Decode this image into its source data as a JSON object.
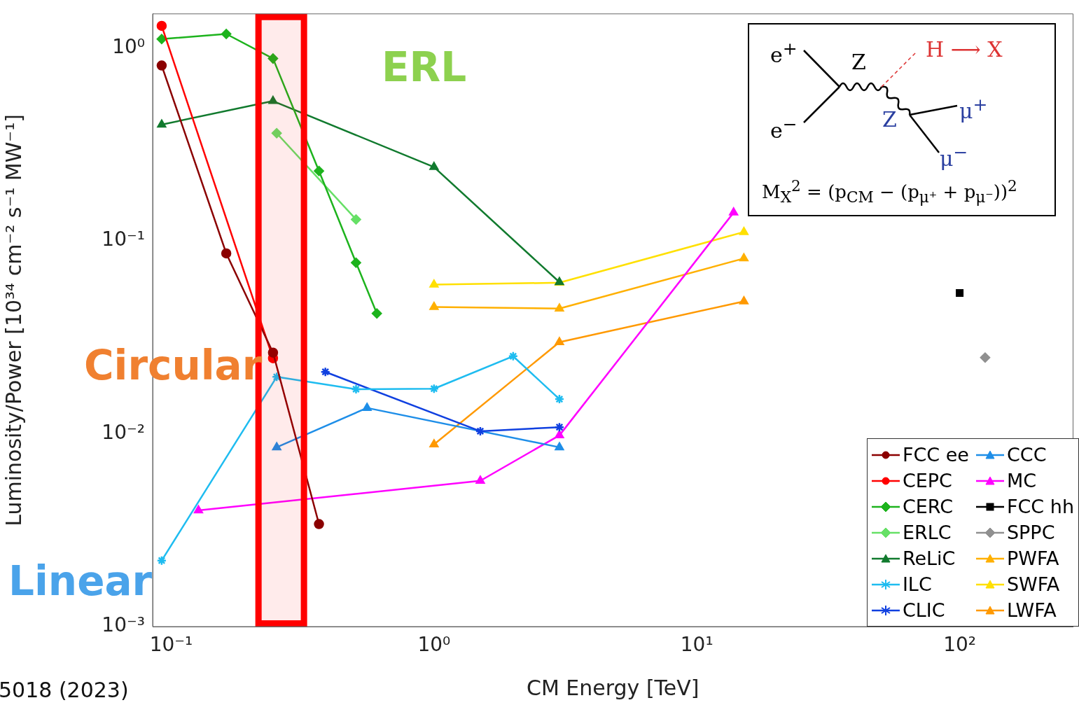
{
  "chart_data": {
    "type": "line",
    "xlabel": "CM Energy [TeV]",
    "ylabel": "Luminosity/Power [10³⁴ cm⁻² s⁻¹ MW⁻¹]",
    "log": "xy",
    "xlim": [
      0.085,
      270
    ],
    "xticks": [
      {
        "value": 0.1,
        "label": "10⁻¹"
      },
      {
        "value": 1,
        "label": "10⁰"
      },
      {
        "value": 10,
        "label": "10¹"
      },
      {
        "value": 100,
        "label": "10²"
      }
    ],
    "ylim": [
      0.001,
      1.5
    ],
    "yticks": [
      {
        "value": 0.001,
        "label": "10⁻³"
      },
      {
        "value": 0.01,
        "label": "10⁻²"
      },
      {
        "value": 0.1,
        "label": "10⁻¹"
      },
      {
        "value": 1,
        "label": "10⁰"
      }
    ],
    "legend": "bottom right",
    "bands": [
      {
        "axis": "x",
        "from": 0.209,
        "to": 0.329,
        "color": "#ff0000"
      }
    ],
    "annotations": [
      "ERL",
      "Circular",
      "Linear",
      "5018 (2023)",
      "e$^{+}$",
      "e$^{−}$",
      "Z",
      "H ⟶ X",
      "Z",
      "μ$^{+}$",
      "μ$^{−}$",
      "M$_{X}$$^{2}$ = (p$_{CM}$ − (p$_{μ⁺}$ + p$_{μ⁻}$))$^{2}$"
    ],
    "series": [
      {
        "name": "FCC ee",
        "type": "line",
        "marker": "circle",
        "color": "#8b0000",
        "x": [
          0.092,
          0.162,
          0.244,
          0.365
        ],
        "values": [
          0.81,
          0.086,
          0.0263,
          0.0034
        ]
      },
      {
        "name": "CEPC",
        "type": "line",
        "marker": "circle",
        "color": "#ff0000",
        "x": [
          0.092,
          0.244
        ],
        "values": [
          1.3,
          0.0246
        ]
      },
      {
        "name": "CERC",
        "type": "line",
        "marker": "diamond",
        "color": "#1db31d",
        "x": [
          0.092,
          0.162,
          0.244,
          0.365,
          0.505,
          0.606
        ],
        "values": [
          1.11,
          1.18,
          0.88,
          0.23,
          0.077,
          0.042
        ]
      },
      {
        "name": "ERLC",
        "type": "line",
        "marker": "diamond",
        "color": "#66e066",
        "x": [
          0.252,
          0.505
        ],
        "values": [
          0.361,
          0.129
        ]
      },
      {
        "name": "ReLiC",
        "type": "line",
        "marker": "triangle",
        "color": "#117a2e",
        "x": [
          0.092,
          0.244,
          1.0,
          3.0
        ],
        "values": [
          0.4,
          0.53,
          0.241,
          0.061
        ]
      },
      {
        "name": "ILC",
        "type": "line",
        "marker": "cross",
        "color": "#1ebcf0",
        "x": [
          0.092,
          0.252,
          0.505,
          1.0,
          2.0,
          3.0
        ],
        "values": [
          0.0022,
          0.0197,
          0.017,
          0.0171,
          0.0252,
          0.0151
        ]
      },
      {
        "name": "CLIC",
        "type": "line",
        "marker": "cross",
        "color": "#1040e0",
        "x": [
          0.386,
          1.5,
          3.0
        ],
        "values": [
          0.0209,
          0.0103,
          0.0108
        ]
      },
      {
        "name": "CCC",
        "type": "line",
        "marker": "triangle",
        "color": "#1e8ee8",
        "x": [
          0.252,
          0.556,
          3.0
        ],
        "values": [
          0.0085,
          0.0136,
          0.0085
        ]
      },
      {
        "name": "MC",
        "type": "line",
        "marker": "triangle",
        "color": "#ff00ff",
        "x": [
          0.127,
          1.5,
          3.0,
          13.8
        ],
        "values": [
          0.004,
          0.0057,
          0.0098,
          0.14
        ]
      },
      {
        "name": "FCC hh",
        "type": "line",
        "marker": "square",
        "color": "#000000",
        "x": [
          100
        ],
        "values": [
          0.0536
        ]
      },
      {
        "name": "SPPC",
        "type": "line",
        "marker": "diamond",
        "color": "#909090",
        "x": [
          125
        ],
        "values": [
          0.0248
        ]
      },
      {
        "name": "PWFA",
        "type": "line",
        "marker": "triangle",
        "color": "#ffb000",
        "x": [
          1.0,
          3.0,
          15.1
        ],
        "values": [
          0.0454,
          0.0445,
          0.081
        ]
      },
      {
        "name": "SWFA",
        "type": "line",
        "marker": "triangle",
        "color": "#ffe000",
        "x": [
          1.0,
          3.0,
          15.1
        ],
        "values": [
          0.0592,
          0.0606,
          0.111
        ]
      },
      {
        "name": "LWFA",
        "type": "line",
        "marker": "triangle",
        "color": "#ff9900",
        "x": [
          1.0,
          3.0,
          15.1
        ],
        "values": [
          0.0088,
          0.0298,
          0.0485
        ]
      }
    ]
  }
}
